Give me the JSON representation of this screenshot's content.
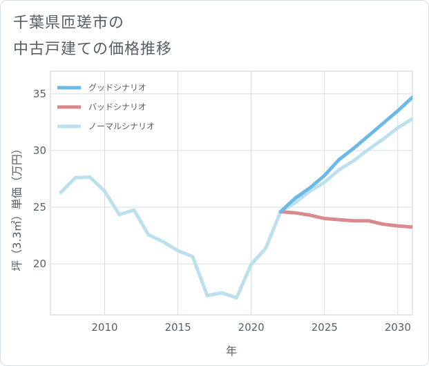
{
  "title_lines": [
    "千葉県匝瑳市の",
    "中古戸建ての価格推移"
  ],
  "chart_data": {
    "type": "line",
    "xlabel": "年",
    "ylabel": "坪（3.3㎡）単価（万円）",
    "xlim": [
      2006.3,
      2031
    ],
    "ylim": [
      15.5,
      37
    ],
    "xticks": [
      2010,
      2015,
      2020,
      2025,
      2030
    ],
    "yticks": [
      20,
      25,
      30,
      35
    ],
    "grid": true,
    "legend_position": "top-left",
    "series": [
      {
        "name": "グッドシナリオ",
        "color": "#6cb8e8",
        "x": [
          2022,
          2023,
          2024,
          2025,
          2026,
          2027,
          2028,
          2029,
          2030,
          2031
        ],
        "y": [
          24.6,
          25.8,
          26.7,
          27.8,
          29.2,
          30.2,
          31.3,
          32.4,
          33.5,
          34.7
        ]
      },
      {
        "name": "バッドシナリオ",
        "color": "#d98a8f",
        "x": [
          2022,
          2023,
          2024,
          2025,
          2026,
          2027,
          2028,
          2029,
          2030,
          2031
        ],
        "y": [
          24.6,
          24.5,
          24.3,
          24.0,
          23.9,
          23.8,
          23.8,
          23.5,
          23.35,
          23.25
        ]
      },
      {
        "name": "ノーマルシナリオ",
        "color": "#bde0ee",
        "x": [
          2007,
          2008,
          2009,
          2010,
          2011,
          2012,
          2013,
          2014,
          2015,
          2016,
          2017,
          2018,
          2019,
          2020,
          2021,
          2022,
          2023,
          2024,
          2025,
          2026,
          2027,
          2028,
          2029,
          2030,
          2031
        ],
        "y": [
          26.3,
          27.6,
          27.65,
          26.4,
          24.35,
          24.75,
          22.55,
          21.95,
          21.15,
          20.65,
          17.2,
          17.45,
          17.0,
          19.95,
          21.4,
          24.6,
          25.4,
          26.4,
          27.2,
          28.3,
          29.1,
          30.1,
          31.0,
          32.0,
          32.8
        ]
      }
    ]
  }
}
